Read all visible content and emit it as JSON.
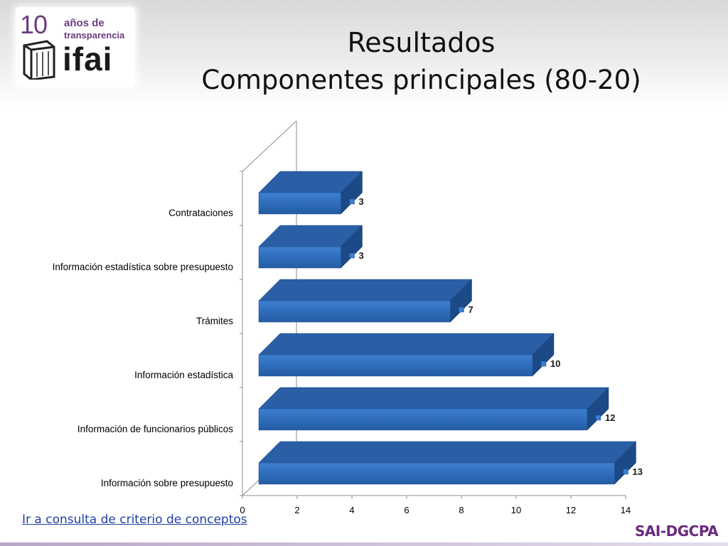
{
  "slide": {
    "title_line1": "Resultados",
    "title_line2": "Componentes principales (80-20)",
    "link_text": "Ir a consulta de criterio de conceptos",
    "brand": "SAI-DGCPA"
  },
  "logo": {
    "number": "10",
    "line1": "años de",
    "line2": "transparencia",
    "word": "ifai"
  },
  "colors": {
    "bar_front": "#2f6dbb",
    "bar_top": "#2a5fa5",
    "bar_side": "#1c4a86",
    "accent": "#6a2a7e"
  },
  "chart_data": {
    "type": "bar",
    "orientation": "horizontal",
    "style": "3d",
    "categories": [
      "Información sobre presupuesto",
      "Información de funcionarios públicos",
      "Información estadística",
      "Trámites",
      "Información estadística sobre presupuesto",
      "Contrataciones"
    ],
    "values": [
      13,
      12,
      10,
      7,
      3,
      3
    ],
    "xlim": [
      0,
      14
    ],
    "xticks": [
      "0",
      "2",
      "4",
      "6",
      "8",
      "10",
      "12",
      "14"
    ],
    "data_labels": [
      "13",
      "12",
      "10",
      "7",
      "3",
      "3"
    ],
    "legend": "none",
    "grid": false
  }
}
